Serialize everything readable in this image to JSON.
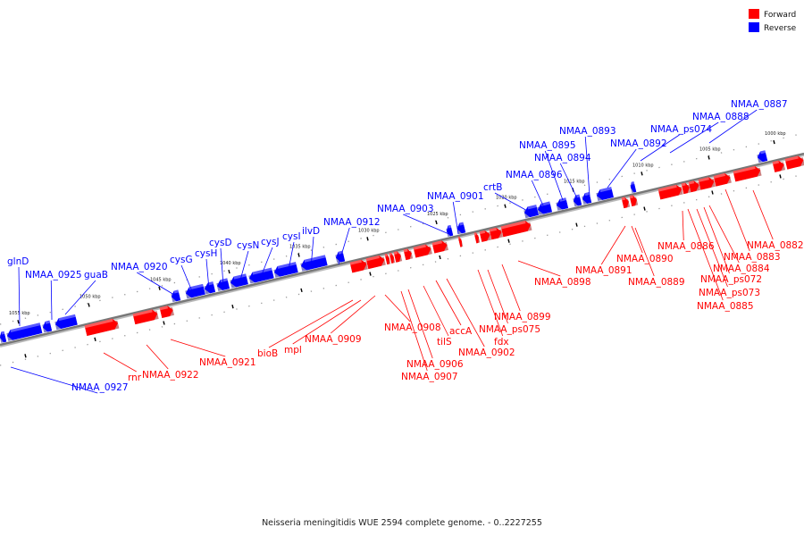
{
  "caption": "Neisseria meningitidis WUE 2594 complete genome. - 0..2227255",
  "legend": [
    {
      "label": "Forward",
      "color": "#ff0000"
    },
    {
      "label": "Reverse",
      "color": "#0000ff"
    }
  ],
  "colors": {
    "forward": "#ff0000",
    "reverse": "#0000ff",
    "backbone": "#777777"
  },
  "ticks": [
    "1000 kbp",
    "1005 kbp",
    "1010 kbp",
    "1015 kbp",
    "1020 kbp",
    "1025 kbp",
    "1030 kbp",
    "1035 kbp",
    "1040 kbp",
    "1045 kbp",
    "1050 kbp",
    "1055 kbp"
  ],
  "reverse_labels": [
    "NMAA_0887",
    "NMAA_0888",
    "NMAA_ps074",
    "NMAA_0893",
    "NMAA_0892",
    "NMAA_0895",
    "NMAA_0894",
    "NMAA_0896",
    "crtB",
    "NMAA_0901",
    "NMAA_0903",
    "NMAA_0912",
    "ilvD",
    "cysI",
    "cysJ",
    "cysN",
    "cysD",
    "cysH",
    "cysG",
    "NMAA_0920",
    "guaB",
    "NMAA_0925",
    "glnD",
    "NMAA_0927"
  ],
  "forward_labels": [
    "NMAA_0882",
    "NMAA_0883",
    "NMAA_0886",
    "NMAA_0884",
    "NMAA_ps072",
    "NMAA_ps073",
    "NMAA_0885",
    "NMAA_0891",
    "NMAA_0890",
    "NMAA_0889",
    "NMAA_0898",
    "NMAA_0899",
    "NMAA_ps075",
    "fdx",
    "NMAA_0902",
    "accA",
    "tilS",
    "NMAA_0906",
    "NMAA_0907",
    "NMAA_0908",
    "NMAA_0909",
    "mpl",
    "bioB",
    "NMAA_0921",
    "NMAA_0922",
    "rnr"
  ]
}
